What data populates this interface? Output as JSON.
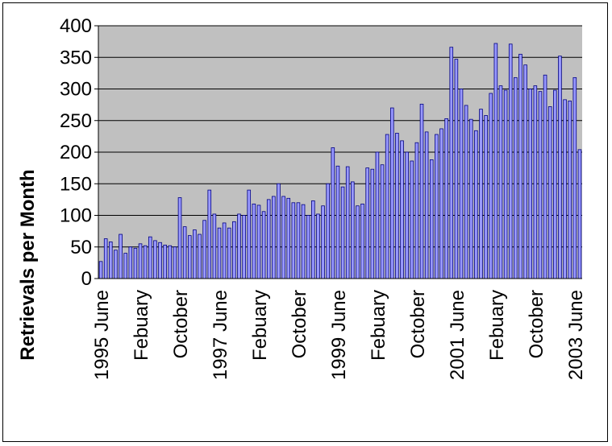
{
  "chart_data": {
    "type": "bar",
    "title": "",
    "xlabel": "",
    "ylabel": "Retrievals per Month",
    "ylim": [
      0,
      400
    ],
    "yticks": [
      0,
      50,
      100,
      150,
      200,
      250,
      300,
      350,
      400
    ],
    "grid": true,
    "legend": "none",
    "colors": {
      "plot_bg": "#c0c0c0",
      "bar_fill": "#9999ff",
      "bar_stroke": "#000080",
      "grid": "#000000"
    },
    "x_tick_labels": [
      {
        "label": "1995 June",
        "index": 0
      },
      {
        "label": "Febuary",
        "index": 8
      },
      {
        "label": "October",
        "index": 16
      },
      {
        "label": "1997 June",
        "index": 24
      },
      {
        "label": "Febuary",
        "index": 32
      },
      {
        "label": "October",
        "index": 40
      },
      {
        "label": "1999 June",
        "index": 48
      },
      {
        "label": "Febuary",
        "index": 56
      },
      {
        "label": "October",
        "index": 64
      },
      {
        "label": "2001 June",
        "index": 72
      },
      {
        "label": "Febuary",
        "index": 80
      },
      {
        "label": "October",
        "index": 88
      },
      {
        "label": "2003 June",
        "index": 96
      }
    ],
    "values": [
      27,
      63,
      58,
      45,
      70,
      40,
      50,
      48,
      55,
      52,
      66,
      60,
      57,
      53,
      52,
      50,
      128,
      82,
      68,
      77,
      70,
      92,
      140,
      102,
      80,
      88,
      80,
      90,
      102,
      100,
      140,
      118,
      116,
      106,
      125,
      130,
      150,
      130,
      127,
      120,
      120,
      117,
      100,
      123,
      102,
      115,
      150,
      207,
      178,
      145,
      177,
      153,
      115,
      118,
      175,
      173,
      200,
      180,
      228,
      270,
      230,
      218,
      200,
      186,
      215,
      276,
      232,
      188,
      228,
      237,
      253,
      366,
      347,
      300,
      274,
      252,
      234,
      268,
      258,
      293,
      372,
      305,
      298,
      371,
      318,
      355,
      338,
      300,
      305,
      296,
      322,
      272,
      298,
      352,
      283,
      281,
      318,
      204
    ]
  }
}
